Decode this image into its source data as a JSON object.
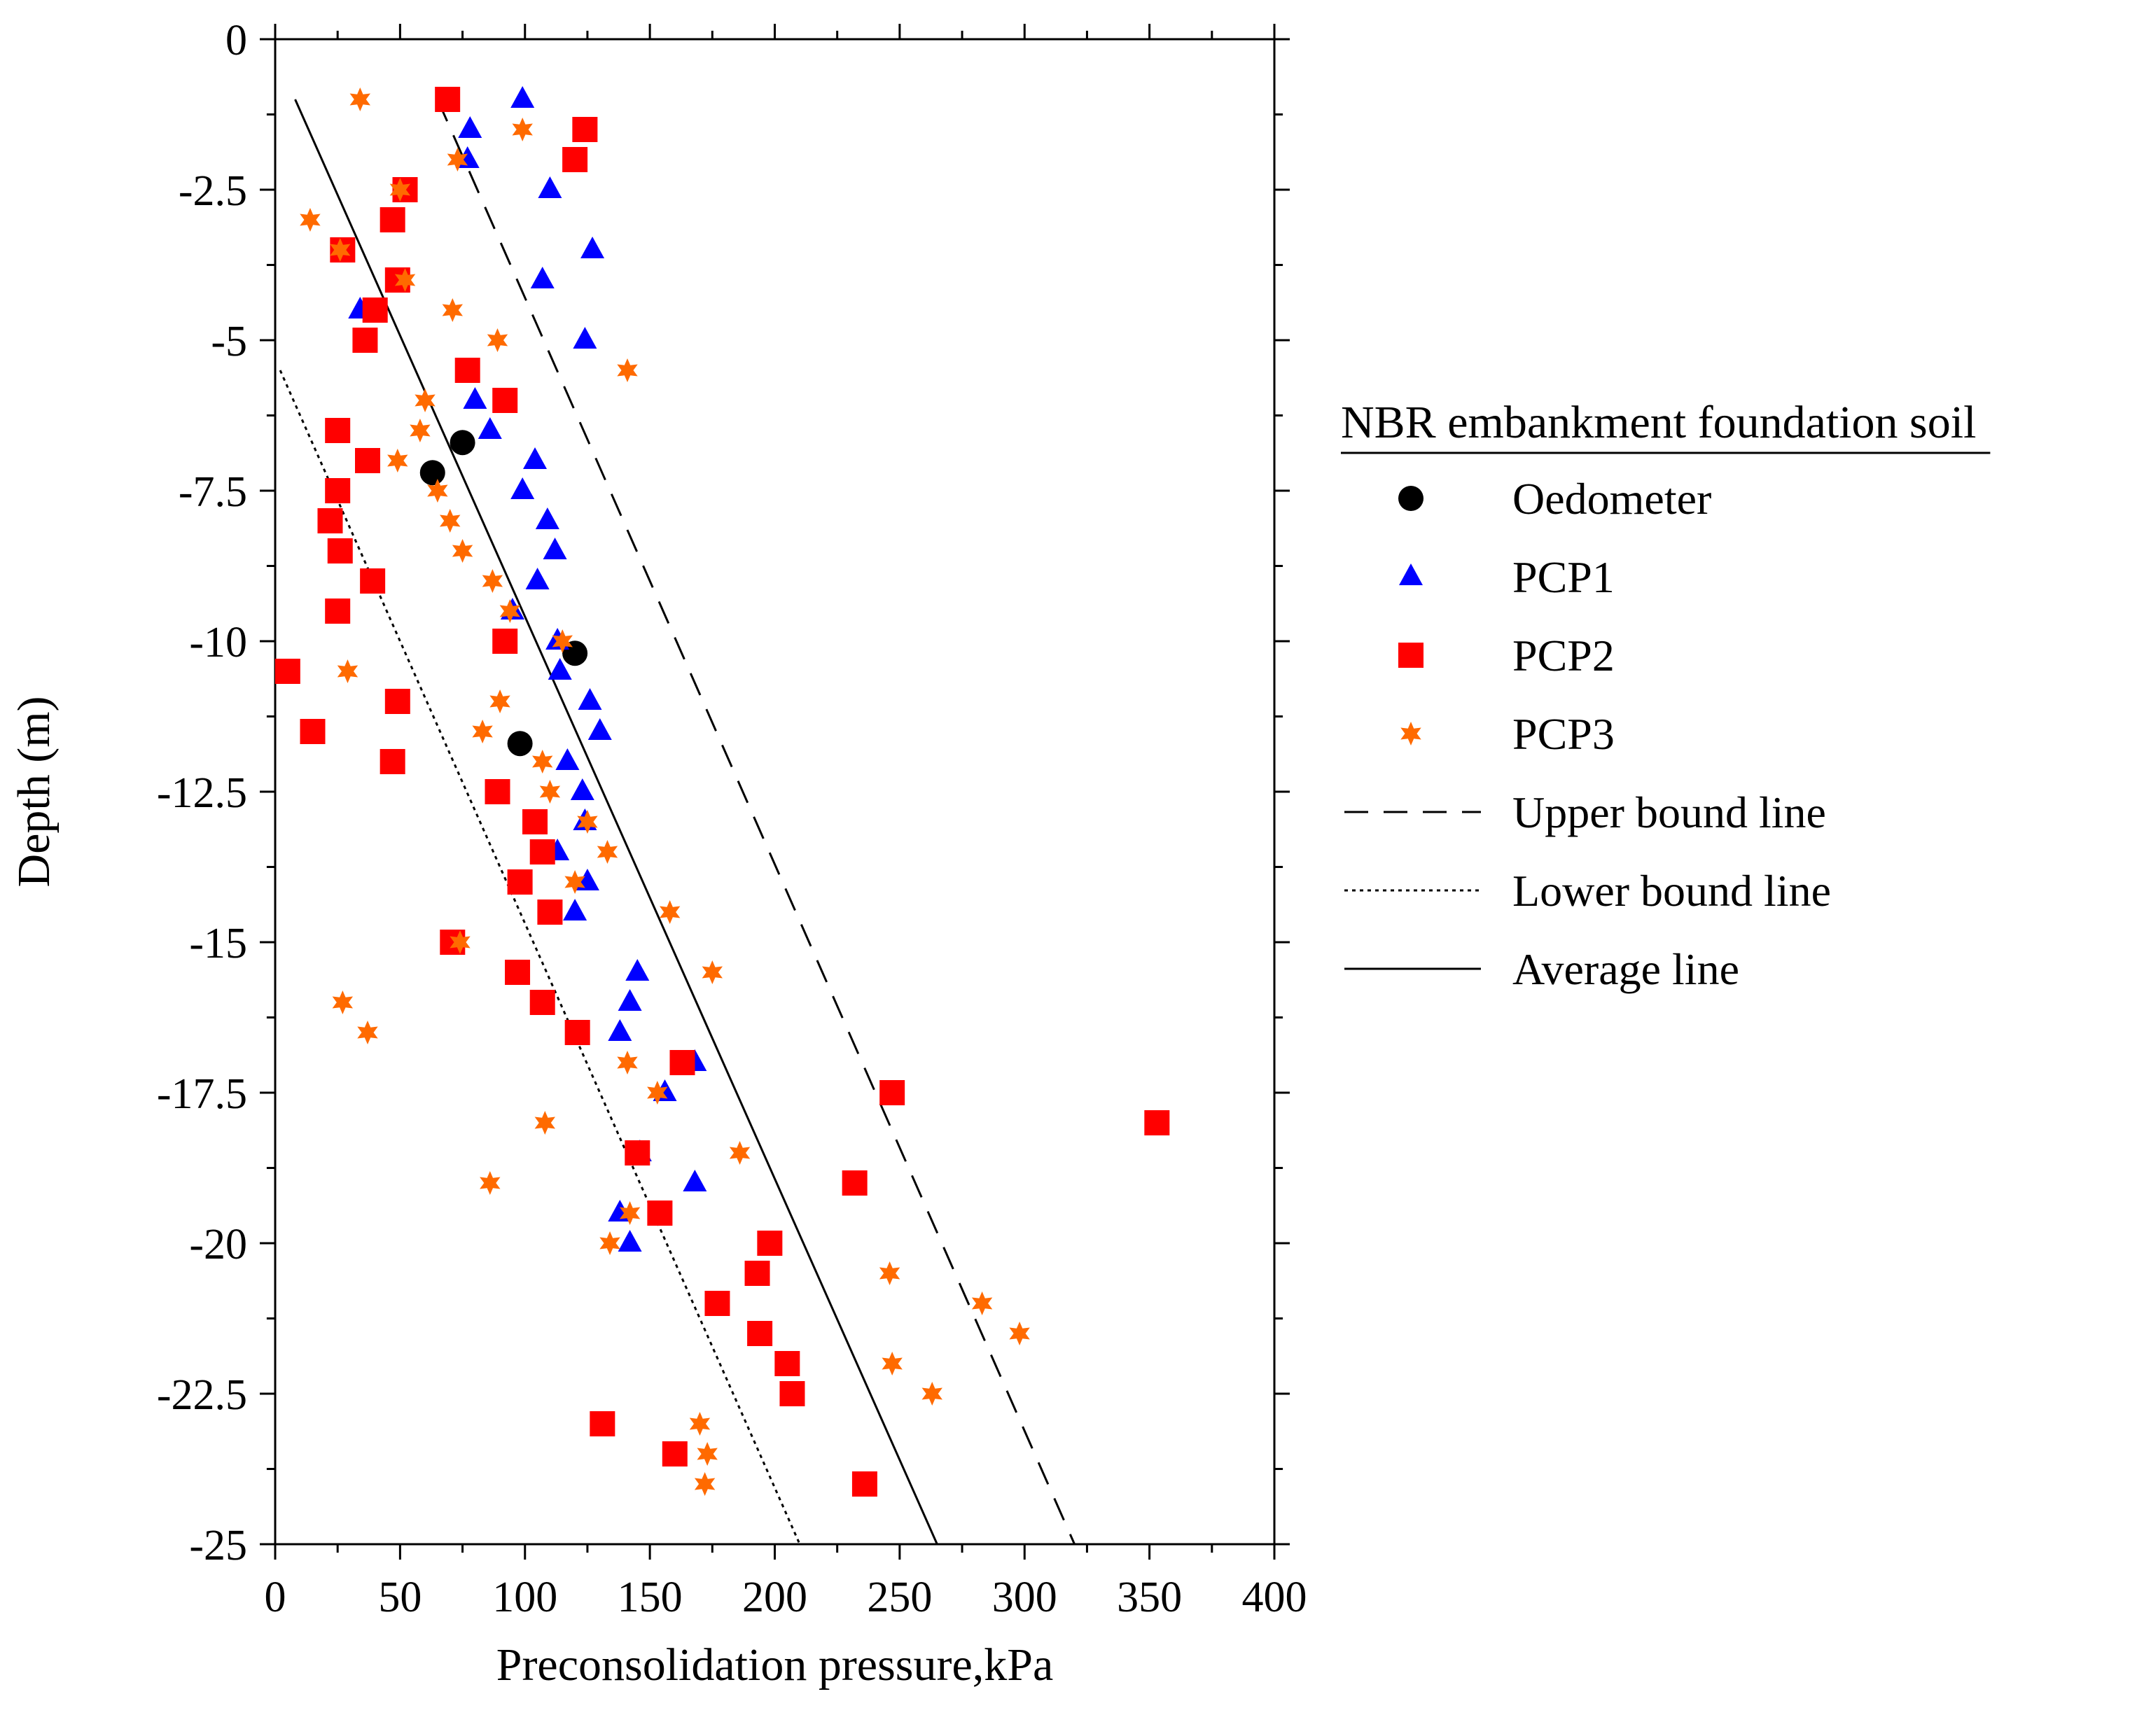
{
  "chart_data": {
    "type": "scatter",
    "title": "",
    "xlabel": "Preconsolidation pressure,kPa",
    "ylabel": "Depth (m)",
    "xlim": [
      0,
      400
    ],
    "ylim": [
      -25,
      0
    ],
    "x_ticks": [
      "0",
      "50",
      "100",
      "150",
      "200",
      "250",
      "300",
      "350",
      "400"
    ],
    "y_ticks": [
      "0",
      "-2.5",
      "-5",
      "-7.5",
      "-10",
      "-12.5",
      "-15",
      "-17.5",
      "-20",
      "-22.5",
      "-25"
    ],
    "legend": {
      "title": "NBR embankment foundation soil",
      "position": "right"
    },
    "series": [
      {
        "name": "Oedometer",
        "marker": "circle",
        "color": "#000000",
        "points": [
          [
            75,
            -6.7
          ],
          [
            63,
            -7.2
          ],
          [
            120,
            -10.2
          ],
          [
            98,
            -11.7
          ]
        ]
      },
      {
        "name": "PCP1",
        "marker": "triangle",
        "color": "#0000ff",
        "points": [
          [
            99,
            -1
          ],
          [
            78,
            -1.5
          ],
          [
            77,
            -2
          ],
          [
            110,
            -2.5
          ],
          [
            127,
            -3.5
          ],
          [
            107,
            -4
          ],
          [
            124,
            -5
          ],
          [
            34,
            -4.5
          ],
          [
            80,
            -6
          ],
          [
            86,
            -6.5
          ],
          [
            104,
            -7
          ],
          [
            99,
            -7.5
          ],
          [
            109,
            -8
          ],
          [
            112,
            -8.5
          ],
          [
            105,
            -9
          ],
          [
            95,
            -9.5
          ],
          [
            113,
            -10
          ],
          [
            114,
            -10.5
          ],
          [
            126,
            -11
          ],
          [
            130,
            -11.5
          ],
          [
            117,
            -12
          ],
          [
            123,
            -12.5
          ],
          [
            124,
            -13
          ],
          [
            113,
            -13.5
          ],
          [
            125,
            -14
          ],
          [
            120,
            -14.5
          ],
          [
            145,
            -15.5
          ],
          [
            142,
            -16
          ],
          [
            138,
            -16.5
          ],
          [
            168,
            -17
          ],
          [
            156,
            -17.5
          ],
          [
            146,
            -18.5
          ],
          [
            168,
            -19
          ],
          [
            138,
            -19.5
          ],
          [
            142,
            -20
          ]
        ]
      },
      {
        "name": "PCP2",
        "marker": "square",
        "color": "#ff0000",
        "points": [
          [
            69,
            -1
          ],
          [
            124,
            -1.5
          ],
          [
            120,
            -2
          ],
          [
            52,
            -2.5
          ],
          [
            47,
            -3
          ],
          [
            27,
            -3.5
          ],
          [
            49,
            -4
          ],
          [
            40,
            -4.5
          ],
          [
            36,
            -5
          ],
          [
            77,
            -5.5
          ],
          [
            92,
            -6
          ],
          [
            25,
            -6.5
          ],
          [
            37,
            -7
          ],
          [
            25,
            -7.5
          ],
          [
            22,
            -8
          ],
          [
            26,
            -8.5
          ],
          [
            39,
            -9
          ],
          [
            25,
            -9.5
          ],
          [
            92,
            -10
          ],
          [
            5,
            -10.5
          ],
          [
            49,
            -11
          ],
          [
            15,
            -11.5
          ],
          [
            47,
            -12
          ],
          [
            89,
            -12.5
          ],
          [
            104,
            -13
          ],
          [
            107,
            -13.5
          ],
          [
            98,
            -14
          ],
          [
            110,
            -14.5
          ],
          [
            71,
            -15
          ],
          [
            97,
            -15.5
          ],
          [
            107,
            -16
          ],
          [
            121,
            -16.5
          ],
          [
            163,
            -17
          ],
          [
            247,
            -17.5
          ],
          [
            353,
            -18
          ],
          [
            145,
            -18.5
          ],
          [
            232,
            -19
          ],
          [
            154,
            -19.5
          ],
          [
            198,
            -20
          ],
          [
            193,
            -20.5
          ],
          [
            177,
            -21
          ],
          [
            194,
            -21.5
          ],
          [
            205,
            -22
          ],
          [
            207,
            -22.5
          ],
          [
            131,
            -23
          ],
          [
            160,
            -23.5
          ],
          [
            236,
            -24
          ]
        ]
      },
      {
        "name": "PCP3",
        "marker": "star",
        "color": "#ff6a00",
        "points": [
          [
            34,
            -1
          ],
          [
            99,
            -1.5
          ],
          [
            73,
            -2
          ],
          [
            50,
            -2.5
          ],
          [
            14,
            -3
          ],
          [
            26,
            -3.5
          ],
          [
            52,
            -4
          ],
          [
            71,
            -4.5
          ],
          [
            89,
            -5
          ],
          [
            141,
            -5.5
          ],
          [
            60,
            -6
          ],
          [
            58,
            -6.5
          ],
          [
            49,
            -7
          ],
          [
            65,
            -7.5
          ],
          [
            70,
            -8
          ],
          [
            75,
            -8.5
          ],
          [
            87,
            -9
          ],
          [
            94,
            -9.5
          ],
          [
            115,
            -10
          ],
          [
            29,
            -10.5
          ],
          [
            90,
            -11
          ],
          [
            83,
            -11.5
          ],
          [
            107,
            -12
          ],
          [
            110,
            -12.5
          ],
          [
            125,
            -13
          ],
          [
            133,
            -13.5
          ],
          [
            120,
            -14
          ],
          [
            158,
            -14.5
          ],
          [
            74,
            -15
          ],
          [
            175,
            -15.5
          ],
          [
            27,
            -16
          ],
          [
            37,
            -16.5
          ],
          [
            141,
            -17
          ],
          [
            153,
            -17.5
          ],
          [
            108,
            -18
          ],
          [
            186,
            -18.5
          ],
          [
            86,
            -19
          ],
          [
            142,
            -19.5
          ],
          [
            134,
            -20
          ],
          [
            246,
            -20.5
          ],
          [
            283,
            -21
          ],
          [
            298,
            -21.5
          ],
          [
            247,
            -22
          ],
          [
            263,
            -22.5
          ],
          [
            170,
            -23
          ],
          [
            173,
            -23.5
          ],
          [
            172,
            -24
          ]
        ]
      }
    ],
    "lines": [
      {
        "name": "Upper bound line",
        "style": "dashed",
        "points": [
          [
            65,
            -1
          ],
          [
            320,
            -25
          ]
        ]
      },
      {
        "name": "Lower bound line",
        "style": "dotted",
        "points": [
          [
            2,
            -5.5
          ],
          [
            210,
            -25
          ]
        ]
      },
      {
        "name": "Average line",
        "style": "solid",
        "points": [
          [
            8,
            -1
          ],
          [
            265,
            -25
          ]
        ]
      }
    ]
  }
}
